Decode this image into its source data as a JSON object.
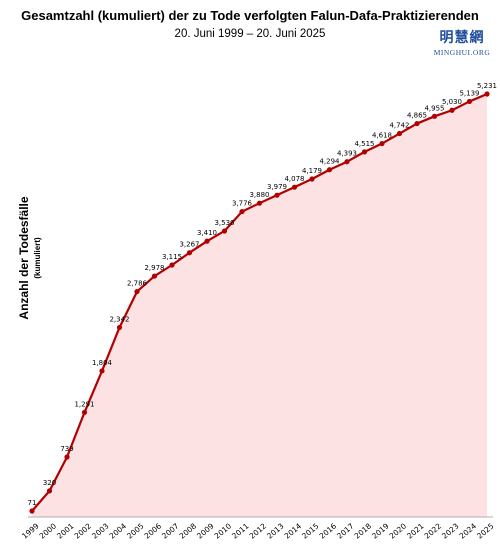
{
  "header": {
    "title": "Gesamtzahl (kumuliert) der zu Tode verfolgten Falun-Dafa-Praktizierenden",
    "subtitle": "20. Juni 1999 – 20. Juni 2025"
  },
  "logo": {
    "chinese": "明慧網",
    "latin": "MINGHUI.ORG"
  },
  "colors": {
    "line": "#b20000",
    "fill": "#fde2e4",
    "marker": "#b20000",
    "logo": "#1f4e9c"
  },
  "chart_data": {
    "type": "area",
    "title": "Gesamtzahl (kumuliert) der zu Tode verfolgten Falun-Dafa-Praktizierenden",
    "subtitle": "20. Juni 1999 – 20. Juni 2025",
    "xlabel": "",
    "ylabel": "Anzahl der Todesfälle",
    "ylabel_sub": "(kumuliert)",
    "x": [
      "1999",
      "2000",
      "2001",
      "2002",
      "2003",
      "2004",
      "2005",
      "2006",
      "2007",
      "2008",
      "2009",
      "2010",
      "2011",
      "2012",
      "2013",
      "2014",
      "2015",
      "2016",
      "2017",
      "2018",
      "2019",
      "2020",
      "2021",
      "2022",
      "2023",
      "2024",
      "2025"
    ],
    "series": [
      {
        "values": [
          71,
          320,
          739,
          1291,
          1804,
          2342,
          2786,
          2978,
          3115,
          3267,
          3410,
          3536,
          3776,
          3880,
          3979,
          4078,
          4179,
          4294,
          4393,
          4515,
          4618,
          4742,
          4865,
          4955,
          5030,
          5139,
          5231
        ],
        "labels": [
          "71",
          "320",
          "739",
          "1,291",
          "1,804",
          "2,342",
          "2,786",
          "2,978",
          "3,115",
          "3,267",
          "3,410",
          "3,536",
          "3,776",
          "3,880",
          "3,979",
          "4,078",
          "4,179",
          "4,294",
          "4,393",
          "4,515",
          "4,618",
          "4,742",
          "4,865",
          "4,955",
          "5,030",
          "5,139",
          "5,231"
        ]
      }
    ],
    "ylim": [
      0,
      5231
    ],
    "grid": false,
    "legend": "none"
  }
}
